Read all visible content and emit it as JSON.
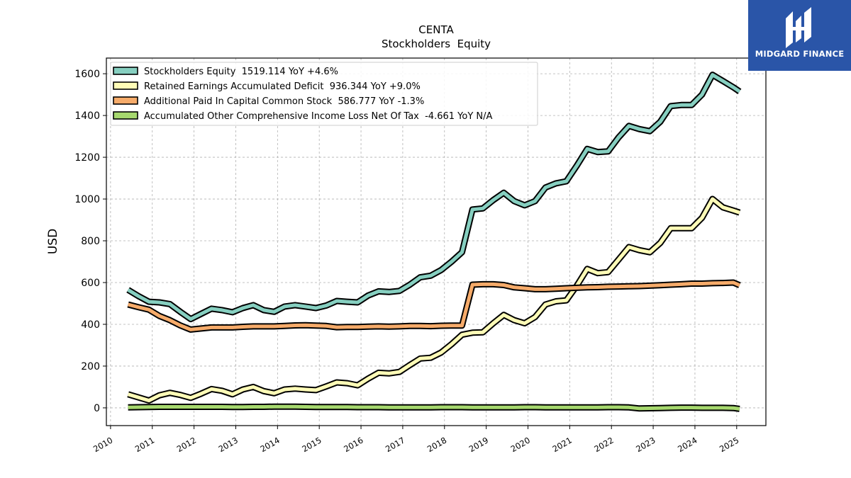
{
  "brand": {
    "name": "MIDGARD FINANCE"
  },
  "chart_data": {
    "type": "line",
    "title": "CENTA",
    "subtitle": "Stockholders  Equity",
    "xlabel": "",
    "ylabel": "USD",
    "xlim": [
      2009.9,
      2025.7
    ],
    "ylim": [
      -85,
      1675
    ],
    "x_ticks": [
      "2010",
      "2011",
      "2012",
      "2013",
      "2014",
      "2015",
      "2016",
      "2017",
      "2018",
      "2019",
      "2020",
      "2021",
      "2022",
      "2023",
      "2024",
      "2025"
    ],
    "y_ticks": [
      0,
      200,
      400,
      600,
      800,
      1000,
      1200,
      1400,
      1600
    ],
    "grid": true,
    "legend": "top-left",
    "x": [
      2010.42,
      2010.67,
      2010.92,
      2011.17,
      2011.42,
      2011.67,
      2011.92,
      2012.17,
      2012.42,
      2012.67,
      2012.92,
      2013.17,
      2013.42,
      2013.67,
      2013.92,
      2014.17,
      2014.42,
      2014.67,
      2014.92,
      2015.17,
      2015.42,
      2015.67,
      2015.92,
      2016.17,
      2016.42,
      2016.67,
      2016.92,
      2017.17,
      2017.42,
      2017.67,
      2017.92,
      2018.17,
      2018.42,
      2018.67,
      2018.92,
      2019.17,
      2019.42,
      2019.67,
      2019.92,
      2020.17,
      2020.42,
      2020.67,
      2020.92,
      2021.17,
      2021.42,
      2021.67,
      2021.92,
      2022.17,
      2022.42,
      2022.67,
      2022.92,
      2023.17,
      2023.42,
      2023.67,
      2023.92,
      2024.17,
      2024.42,
      2024.67,
      2024.92,
      2025.07
    ],
    "series": [
      {
        "name": "Stockholders Equity",
        "legend_label": "Stockholders Equity  1519.114 YoY +4.6%",
        "color": "#86cfc0",
        "values": [
          565,
          535,
          508,
          505,
          497,
          460,
          425,
          450,
          475,
          468,
          458,
          478,
          492,
          468,
          460,
          485,
          492,
          485,
          478,
          490,
          512,
          508,
          505,
          538,
          558,
          555,
          560,
          590,
          625,
          633,
          660,
          700,
          745,
          950,
          955,
          995,
          1030,
          990,
          970,
          990,
          1055,
          1075,
          1085,
          1160,
          1240,
          1225,
          1228,
          1295,
          1350,
          1335,
          1325,
          1370,
          1445,
          1450,
          1450,
          1500,
          1595,
          1565,
          1535,
          1515
        ]
      },
      {
        "name": "Retained Earnings Accumulated Deficit",
        "legend_label": "Retained Earnings Accumulated Deficit  936.344 YoY +9.0%",
        "color": "#fffcb7",
        "values": [
          65,
          50,
          35,
          60,
          72,
          62,
          48,
          68,
          90,
          82,
          65,
          88,
          100,
          80,
          70,
          88,
          92,
          88,
          85,
          103,
          122,
          118,
          108,
          140,
          168,
          165,
          172,
          205,
          236,
          240,
          265,
          305,
          350,
          360,
          362,
          405,
          445,
          420,
          405,
          435,
          495,
          510,
          515,
          585,
          665,
          645,
          650,
          710,
          770,
          755,
          745,
          790,
          860,
          860,
          860,
          910,
          1000,
          960,
          945,
          935
        ]
      },
      {
        "name": "Additional Paid In Capital Common Stock",
        "legend_label": "Additional Paid In Capital Common Stock  586.777 YoY -1.3%",
        "color": "#f6ab6a",
        "values": [
          495,
          482,
          470,
          440,
          420,
          395,
          375,
          380,
          385,
          385,
          385,
          388,
          390,
          390,
          390,
          392,
          395,
          396,
          394,
          392,
          386,
          387,
          387,
          389,
          390,
          389,
          390,
          392,
          392,
          391,
          393,
          394,
          394,
          590,
          592,
          592,
          588,
          577,
          573,
          568,
          568,
          570,
          573,
          575,
          577,
          578,
          580,
          581,
          582,
          583,
          585,
          587,
          590,
          592,
          595,
          595,
          597,
          598,
          600,
          587
        ]
      },
      {
        "name": "Accumulated Other Comprehensive Income Loss Net Of Tax",
        "legend_label": "Accumulated Other Comprehensive Income Loss Net Of Tax  -4.661 YoY N/A",
        "color": "#a6d86e",
        "values": [
          2,
          3,
          4,
          5,
          5,
          5,
          5,
          5,
          5,
          5,
          4,
          4,
          5,
          5,
          6,
          6,
          6,
          5,
          4,
          4,
          4,
          4,
          3,
          3,
          3,
          2,
          2,
          2,
          2,
          2,
          3,
          3,
          3,
          2,
          2,
          2,
          2,
          2,
          3,
          3,
          2,
          2,
          2,
          2,
          2,
          2,
          3,
          3,
          2,
          -3,
          -2,
          -1,
          0,
          1,
          1,
          0,
          0,
          0,
          -1,
          -5
        ]
      }
    ]
  }
}
